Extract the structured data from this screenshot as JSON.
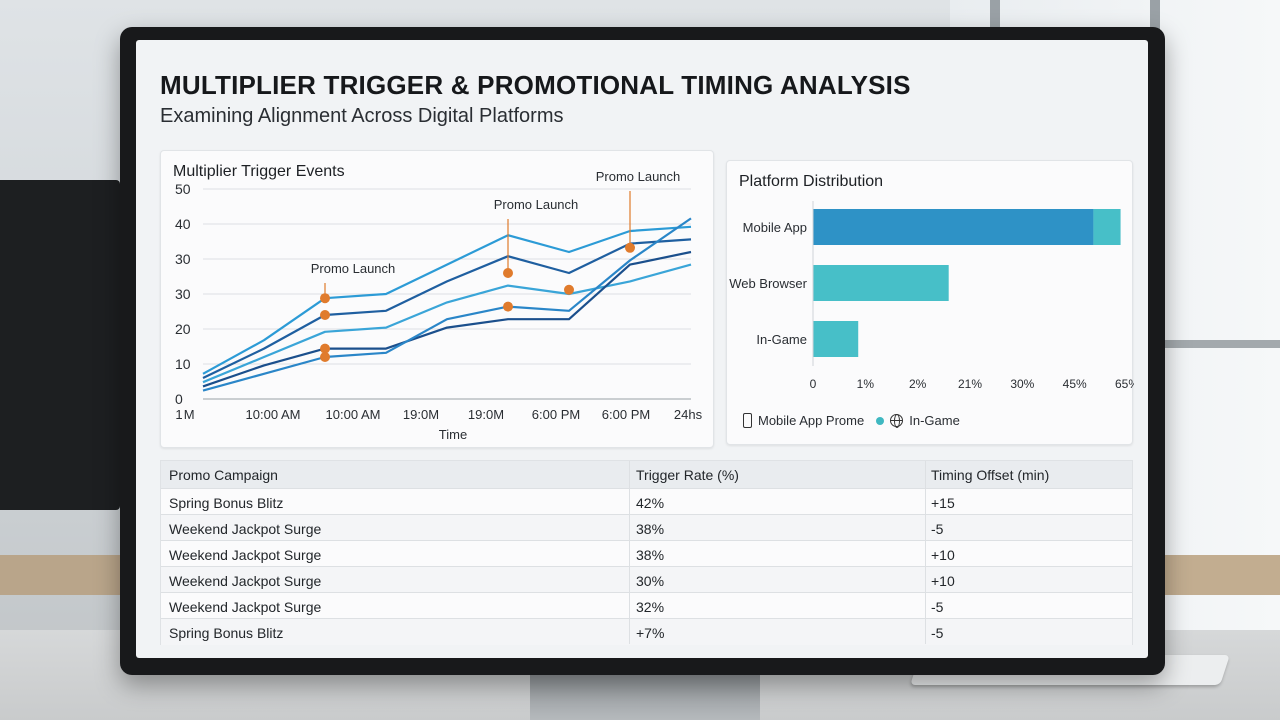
{
  "dashboard": {
    "title": "MULTIPLIER TRIGGER & PROMOTIONAL TIMING ANALYSIS",
    "subtitle": "Examining Alignment Across Digital Platforms"
  },
  "line_chart": {
    "title": "Multiplier Trigger Events",
    "xlabel": "Time",
    "annotations": [
      "Promo Launch",
      "Promo Launch",
      "Promo Launch"
    ]
  },
  "bar_chart": {
    "title": "Platform Distribution",
    "legend": {
      "item1": "Mobile App Prome",
      "item2": "In-Game"
    }
  },
  "chart_data": [
    {
      "type": "line",
      "title": "Multiplier Trigger Events",
      "xlabel": "Time",
      "ylabel": "",
      "x_tick_labels": [
        "1 M",
        "10:00 AM",
        "10:00 AM",
        "19:0M",
        "19:0M",
        "6:00 PM",
        "6:00 PM",
        "24hs"
      ],
      "y_tick_labels": [
        "0",
        "10",
        "20",
        "30",
        "30",
        "40",
        "50"
      ],
      "grid": true,
      "series": [
        {
          "values": [
            6,
            14,
            24,
            25,
            32,
            39,
            35,
            40,
            41
          ]
        },
        {
          "values": [
            5,
            12,
            20,
            21,
            28,
            34,
            30,
            37,
            38
          ]
        },
        {
          "values": [
            4,
            10,
            16,
            17,
            23,
            27,
            25,
            28,
            32
          ]
        },
        {
          "values": [
            3,
            8,
            12,
            12,
            17,
            19,
            19,
            32,
            35
          ]
        },
        {
          "values": [
            2,
            6,
            10,
            11,
            19,
            22,
            21,
            33,
            43
          ]
        }
      ],
      "markers": [
        {
          "x": 2,
          "y": 24
        },
        {
          "x": 2,
          "y": 20
        },
        {
          "x": 2,
          "y": 12
        },
        {
          "x": 2,
          "y": 10
        },
        {
          "x": 5,
          "y": 30
        },
        {
          "x": 5,
          "y": 22
        },
        {
          "x": 6,
          "y": 26
        },
        {
          "x": 7,
          "y": 36
        }
      ],
      "annotations": [
        {
          "text": "Promo Launch",
          "x": 2
        },
        {
          "text": "Promo Launch",
          "x": 5
        },
        {
          "text": "Promo Launch",
          "x": 7
        }
      ]
    },
    {
      "type": "bar",
      "orientation": "horizontal",
      "title": "Platform Distribution",
      "categories": [
        "Mobile App",
        "Web Browser",
        "In-Game"
      ],
      "values": [
        62,
        30,
        10
      ],
      "stacked_segment": {
        "category": "Mobile App",
        "value": 6
      },
      "x_tick_labels": [
        "0",
        "1%",
        "2%",
        "21%",
        "30%",
        "45%",
        "65%"
      ],
      "legend": [
        "Mobile App Prome",
        "In-Game"
      ],
      "colors": {
        "primary": "#2e92c6",
        "secondary": "#47bfc8"
      }
    }
  ],
  "table": {
    "headers": [
      "Promo Campaign",
      "Trigger Rate (%)",
      "Timing Offset (min)"
    ],
    "rows": [
      [
        "Spring Bonus Blitz",
        "42%",
        "+15"
      ],
      [
        "Weekend Jackpot Surge",
        "38%",
        "-5"
      ],
      [
        "Weekend Jackpot Surge",
        "38%",
        "+10"
      ],
      [
        "Weekend Jackpot Surge",
        "30%",
        "+10"
      ],
      [
        "Weekend Jackpot Surge",
        "32%",
        "-5"
      ],
      [
        "Spring Bonus Blitz",
        "+7%",
        "-5"
      ]
    ]
  },
  "colors": {
    "line_palette": [
      "#2c9bd6",
      "#1f5fa0",
      "#3aa5d8",
      "#1b4f8c",
      "#2a86c8"
    ],
    "marker": "#e07b2c"
  }
}
